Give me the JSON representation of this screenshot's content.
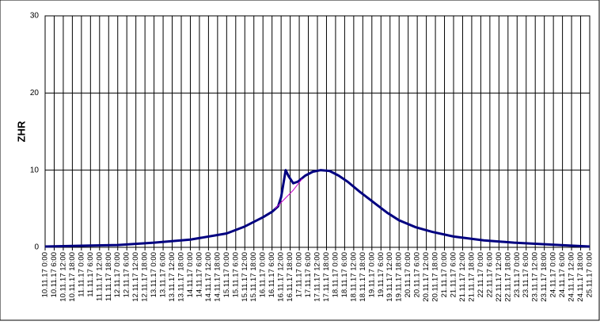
{
  "chart_data": {
    "type": "line",
    "ylabel": "ZHR",
    "ylim": [
      0,
      30
    ],
    "yticks": [
      0,
      10,
      20,
      30
    ],
    "xlim": [
      0,
      360
    ],
    "grid": true,
    "xticks": [
      {
        "value": 0,
        "label": "10.11.17 0:00"
      },
      {
        "value": 6,
        "label": "10.11.17 6:00"
      },
      {
        "value": 12,
        "label": "10.11.17 12:00"
      },
      {
        "value": 18,
        "label": "10.11.17 18:00"
      },
      {
        "value": 24,
        "label": "11.11.17 0:00"
      },
      {
        "value": 30,
        "label": "11.11.17 6:00"
      },
      {
        "value": 36,
        "label": "11.11.17 12:00"
      },
      {
        "value": 42,
        "label": "11.11.17 18:00"
      },
      {
        "value": 48,
        "label": "12.11.17 0:00"
      },
      {
        "value": 54,
        "label": "12.11.17 6:00"
      },
      {
        "value": 60,
        "label": "12.11.17 12:00"
      },
      {
        "value": 66,
        "label": "12.11.17 18:00"
      },
      {
        "value": 72,
        "label": "13.11.17 0:00"
      },
      {
        "value": 78,
        "label": "13.11.17 6:00"
      },
      {
        "value": 84,
        "label": "13.11.17 12:00"
      },
      {
        "value": 90,
        "label": "13.11.17 18:00"
      },
      {
        "value": 96,
        "label": "14.11.17 0:00"
      },
      {
        "value": 102,
        "label": "14.11.17 6:00"
      },
      {
        "value": 108,
        "label": "14.11.17 12:00"
      },
      {
        "value": 114,
        "label": "14.11.17 18:00"
      },
      {
        "value": 120,
        "label": "15.11.17 0:00"
      },
      {
        "value": 126,
        "label": "15.11.17 6:00"
      },
      {
        "value": 132,
        "label": "15.11.17 12:00"
      },
      {
        "value": 138,
        "label": "15.11.17 18:00"
      },
      {
        "value": 144,
        "label": "16.11.17 0:00"
      },
      {
        "value": 150,
        "label": "16.11.17 6:00"
      },
      {
        "value": 156,
        "label": "16.11.17 12:00"
      },
      {
        "value": 162,
        "label": "16.11.17 18:00"
      },
      {
        "value": 168,
        "label": "17.11.17 0:00"
      },
      {
        "value": 174,
        "label": "17.11.17 6:00"
      },
      {
        "value": 180,
        "label": "17.11.17 12:00"
      },
      {
        "value": 186,
        "label": "17.11.17 18:00"
      },
      {
        "value": 192,
        "label": "18.11.17 0:00"
      },
      {
        "value": 198,
        "label": "18.11.17 6:00"
      },
      {
        "value": 204,
        "label": "18.11.17 12:00"
      },
      {
        "value": 210,
        "label": "18.11.17 18:00"
      },
      {
        "value": 216,
        "label": "19.11.17 0:00"
      },
      {
        "value": 222,
        "label": "19.11.17 6:00"
      },
      {
        "value": 228,
        "label": "19.11.17 12:00"
      },
      {
        "value": 234,
        "label": "19.11.17 18:00"
      },
      {
        "value": 240,
        "label": "20.11.17 0:00"
      },
      {
        "value": 246,
        "label": "20.11.17 6:00"
      },
      {
        "value": 252,
        "label": "20.11.17 12:00"
      },
      {
        "value": 258,
        "label": "20.11.17 18:00"
      },
      {
        "value": 264,
        "label": "21.11.17 0:00"
      },
      {
        "value": 270,
        "label": "21.11.17 6:00"
      },
      {
        "value": 276,
        "label": "21.11.17 12:00"
      },
      {
        "value": 282,
        "label": "21.11.17 18:00"
      },
      {
        "value": 288,
        "label": "22.11.17 0:00"
      },
      {
        "value": 294,
        "label": "22.11.17 6:00"
      },
      {
        "value": 300,
        "label": "22.11.17 12:00"
      },
      {
        "value": 306,
        "label": "22.11.17 18:00"
      },
      {
        "value": 312,
        "label": "23.11.17 0:00"
      },
      {
        "value": 318,
        "label": "23.11.17 6:00"
      },
      {
        "value": 324,
        "label": "23.11.17 12:00"
      },
      {
        "value": 330,
        "label": "23.11.17 18:00"
      },
      {
        "value": 336,
        "label": "24.11.17 0:00"
      },
      {
        "value": 342,
        "label": "24.11.17 6:00"
      },
      {
        "value": 348,
        "label": "24.11.17 12:00"
      },
      {
        "value": 354,
        "label": "24.11.17 18:00"
      },
      {
        "value": 360,
        "label": "25.11.17 0:00"
      }
    ],
    "series": [
      {
        "color": "#000080",
        "width": 3,
        "x": [
          0,
          24,
          48,
          72,
          96,
          120,
          132,
          144,
          150,
          154,
          156,
          158,
          159,
          161,
          164,
          167,
          172,
          177,
          182,
          188,
          194,
          200,
          208,
          218,
          226,
          234,
          245,
          256,
          270,
          290,
          310,
          340,
          360
        ],
        "values": [
          0.1,
          0.2,
          0.3,
          0.6,
          1.0,
          1.8,
          2.7,
          3.9,
          4.6,
          5.3,
          6.5,
          8.8,
          10,
          9.2,
          8.3,
          8.5,
          9.3,
          9.8,
          10,
          9.9,
          9.3,
          8.5,
          7.2,
          5.7,
          4.5,
          3.5,
          2.6,
          2.0,
          1.4,
          0.9,
          0.6,
          0.3,
          0.1
        ]
      },
      {
        "color": "#cc00cc",
        "width": 1,
        "x": [
          152,
          158,
          164,
          170
        ],
        "values": [
          5.0,
          6.2,
          7.4,
          8.9
        ]
      }
    ]
  }
}
